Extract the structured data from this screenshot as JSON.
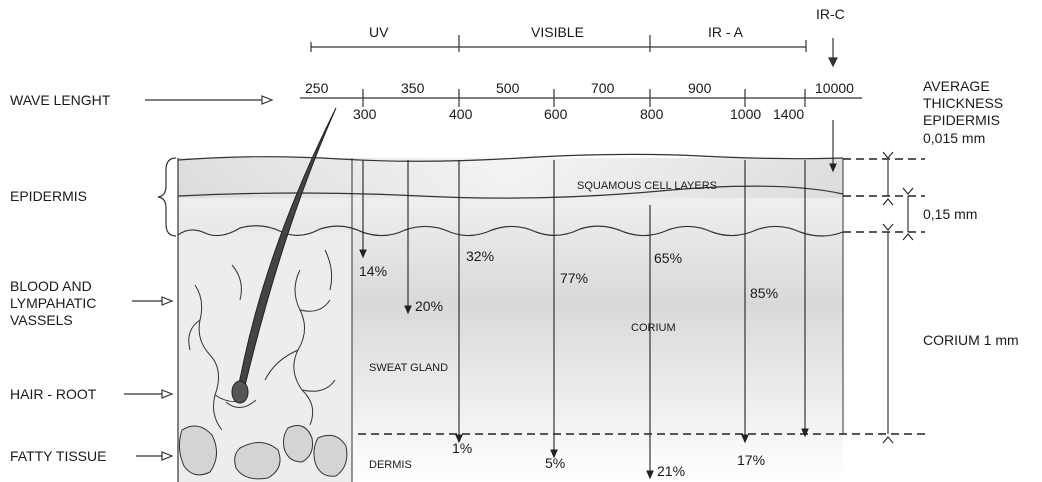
{
  "bands": {
    "uv": "UV",
    "visible": "VISIBLE",
    "ira": "IR - A",
    "irc": "IR-C"
  },
  "wavelengths_top": [
    "250",
    "350",
    "500",
    "700",
    "900",
    "10000"
  ],
  "wavelengths_bottom": [
    "300",
    "400",
    "600",
    "800",
    "1000",
    "1400"
  ],
  "left_labels": {
    "wavelength": "WAVE LENGHT",
    "epidermis": "EPIDERMIS",
    "blood": [
      "BLOOD AND",
      "LYMPAHATIC",
      "VASSELS"
    ],
    "hair_root": "HAIR - ROOT",
    "fatty_tissue": "FATTY TISSUE"
  },
  "right_labels": {
    "avg_thickness": [
      "AVERAGE",
      "THICKNESS",
      "EPIDERMIS"
    ],
    "epi_value": "0,015 mm",
    "layer_value": "0,15 mm",
    "corium_value": "CORIUM 1 mm"
  },
  "inner_labels": {
    "squamous": "SQUAMOUS CELL LAYERS",
    "corium": "CORIUM",
    "sweat_gland": "SWEAT GLAND",
    "dermis": "DERMIS"
  },
  "penetration_upper": [
    "14%",
    "20%",
    "32%",
    "77%",
    "65%",
    "85%"
  ],
  "penetration_lower": [
    "1%",
    "5%",
    "21%",
    "17%"
  ]
}
